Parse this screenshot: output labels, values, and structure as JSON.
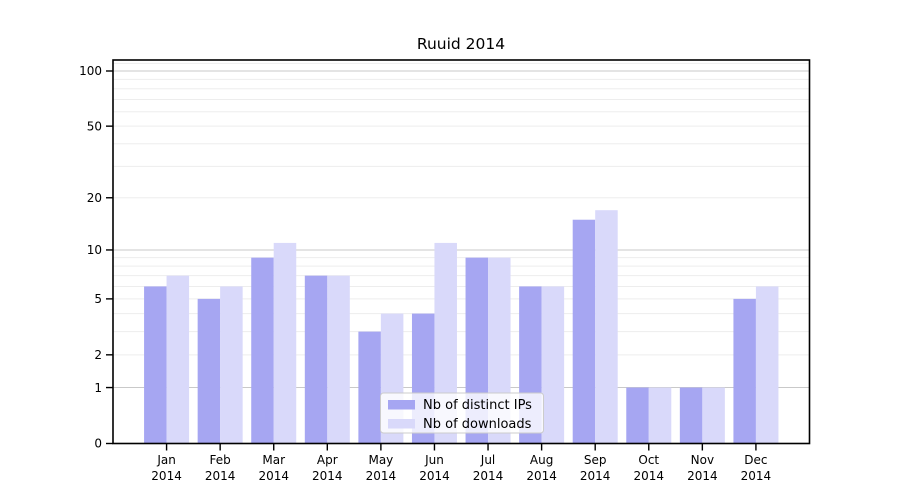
{
  "chart_data": {
    "type": "bar",
    "title": "Ruuid 2014",
    "categories": [
      "Jan",
      "Feb",
      "Mar",
      "Apr",
      "May",
      "Jun",
      "Jul",
      "Aug",
      "Sep",
      "Oct",
      "Nov",
      "Dec"
    ],
    "year_label": "2014",
    "series": [
      {
        "name": "Nb of distinct IPs",
        "color": "#a6a6f2",
        "values": [
          6,
          5,
          9,
          7,
          3,
          4,
          9,
          6,
          15,
          1,
          1,
          5
        ]
      },
      {
        "name": "Nb of downloads",
        "color": "#d9d9fa",
        "values": [
          7,
          6,
          11,
          7,
          4,
          11,
          9,
          6,
          17,
          1,
          1,
          6
        ]
      }
    ],
    "xlabel": "",
    "ylabel": "",
    "y_scale": "log1p",
    "y_ticks": [
      0,
      1,
      2,
      5,
      10,
      20,
      50,
      100
    ],
    "y_major_gridlines": [
      1,
      10,
      100
    ],
    "y_minor_gridlines": [
      2,
      3,
      4,
      5,
      6,
      7,
      8,
      9,
      20,
      30,
      40,
      50,
      60,
      70,
      80,
      90,
      110
    ],
    "ylim": [
      0,
      115
    ],
    "grid": true,
    "legend_position": "lower center"
  },
  "colors": {
    "background": "#ffffff",
    "spine": "#000000",
    "major_grid": "#c9c9c9",
    "minor_grid": "#ededed",
    "legend_border": "#cccccc",
    "legend_background": "#ffffff",
    "text": "#000000"
  }
}
